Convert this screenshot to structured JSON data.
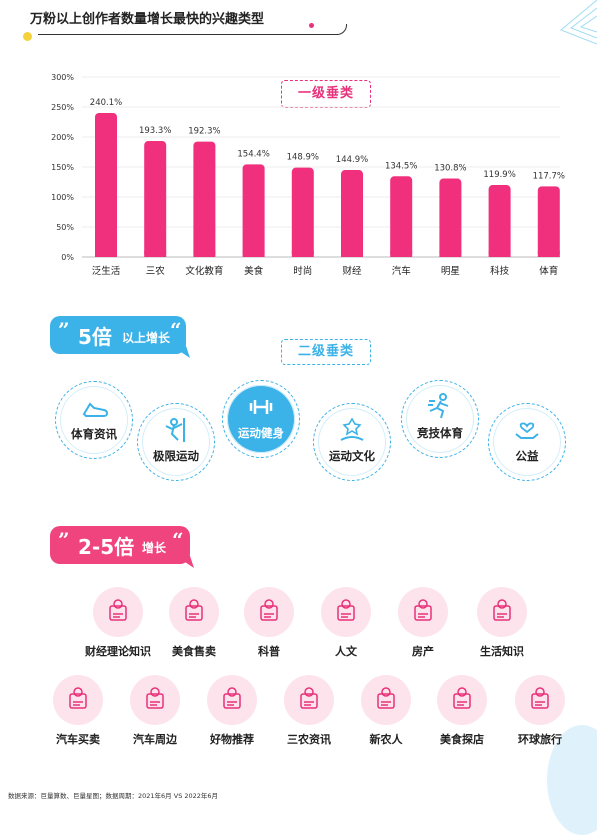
{
  "header": {
    "title": "万粉以上创作者数量增长最快的兴趣类型"
  },
  "section1": {
    "badge": "一级垂类"
  },
  "chart_data": {
    "type": "bar",
    "categories": [
      "泛生活",
      "三农",
      "文化教育",
      "美食",
      "时尚",
      "财经",
      "汽车",
      "明星",
      "科技",
      "体育"
    ],
    "values": [
      240.1,
      193.3,
      192.3,
      154.4,
      148.9,
      144.9,
      134.5,
      130.8,
      119.9,
      117.7
    ],
    "value_labels": [
      "240.1%",
      "193.3%",
      "192.3%",
      "154.4%",
      "148.9%",
      "144.9%",
      "134.5%",
      "130.8%",
      "119.9%",
      "117.7%"
    ],
    "y_ticks": [
      "0%",
      "50%",
      "100%",
      "150%",
      "200%",
      "250%",
      "300%"
    ],
    "ylim": [
      0,
      300
    ],
    "bar_color": "#f0307d",
    "title": "",
    "xlabel": "",
    "ylabel": ""
  },
  "section2": {
    "bubble_big": "5倍",
    "bubble_small": "以上增长",
    "quote_open": "”",
    "quote_close": "“",
    "badge": "二级垂类",
    "accent": "#3bb2e8",
    "items": [
      {
        "label": "体育资讯",
        "icon": "running-shoe-icon"
      },
      {
        "label": "极限运动",
        "icon": "climber-icon"
      },
      {
        "label": "运动健身",
        "icon": "dumbbell-icon",
        "highlighted": true
      },
      {
        "label": "运动文化",
        "icon": "handshake-icon"
      },
      {
        "label": "竞技体育",
        "icon": "runner-icon"
      },
      {
        "label": "公益",
        "icon": "charity-icon"
      }
    ]
  },
  "section3": {
    "bubble_big": "2-5倍",
    "bubble_small": "增长",
    "quote_open": "”",
    "quote_close": "“",
    "accent": "#f0447e",
    "row1": [
      {
        "label": "财经理论知识",
        "icon": "finance-globe-icon"
      },
      {
        "label": "美食售卖",
        "icon": "food-cart-icon"
      },
      {
        "label": "科普",
        "icon": "atom-book-icon"
      },
      {
        "label": "人文",
        "icon": "people-network-icon"
      },
      {
        "label": "房产",
        "icon": "house-icon"
      },
      {
        "label": "生活知识",
        "icon": "lightbulb-briefcase-icon"
      }
    ],
    "row2": [
      {
        "label": "汽车买卖",
        "icon": "cars-icon"
      },
      {
        "label": "汽车周边",
        "icon": "car-front-icon"
      },
      {
        "label": "好物推荐",
        "icon": "thumbs-up-icon"
      },
      {
        "label": "三农资讯",
        "icon": "document-search-icon"
      },
      {
        "label": "新农人",
        "icon": "plant-shovel-icon"
      },
      {
        "label": "美食探店",
        "icon": "storefront-icon"
      },
      {
        "label": "环球旅行",
        "icon": "globe-plane-icon"
      }
    ]
  },
  "footer": {
    "source": "数据来源：巨量算数、巨量星图；数据周期：2021年6月 VS 2022年6月"
  }
}
